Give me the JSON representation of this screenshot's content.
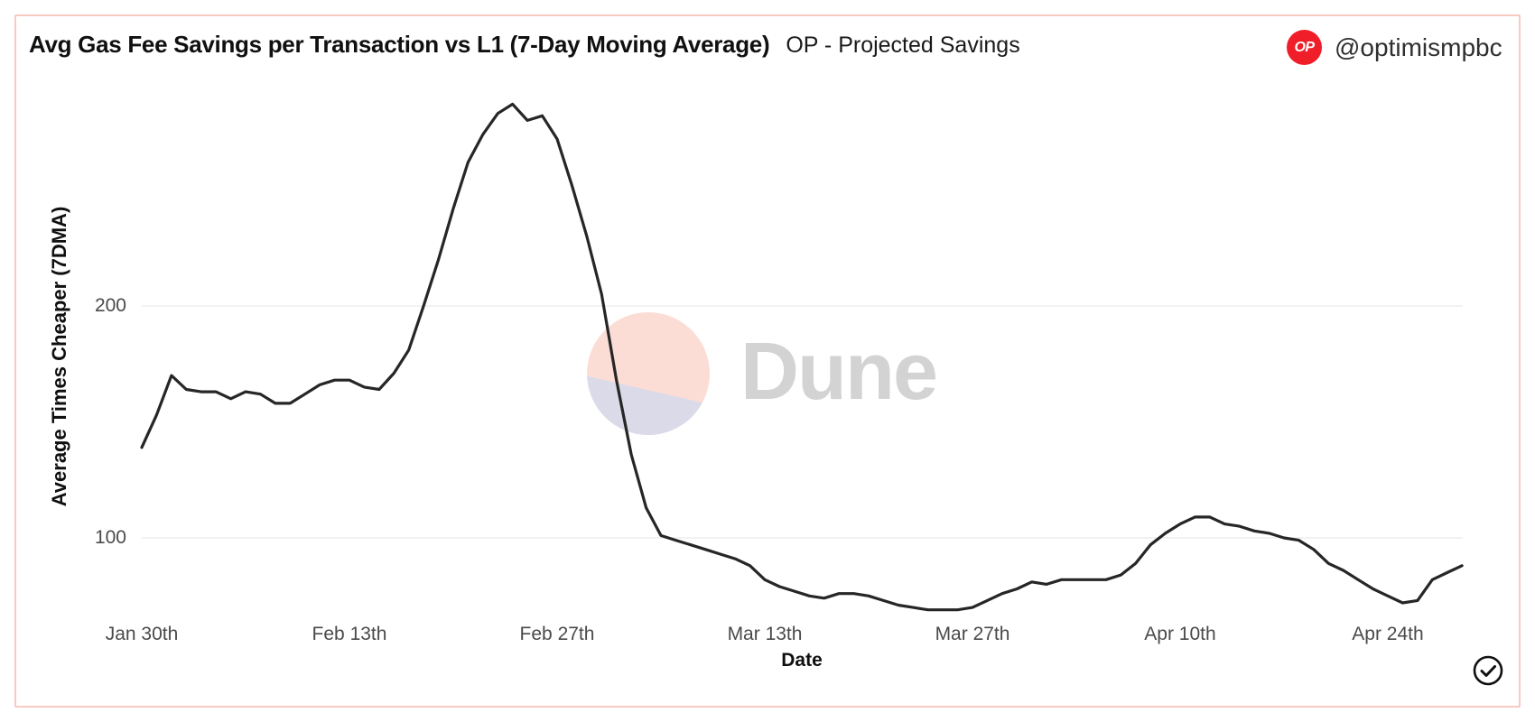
{
  "header": {
    "title": "Avg Gas Fee Savings per Transaction vs L1 (7-Day Moving Average)",
    "subtitle": "OP - Projected Savings",
    "badge_text": "OP",
    "handle": "@optimismpbc"
  },
  "watermark": {
    "text": "Dune"
  },
  "colors": {
    "border": "#f8cac1",
    "badge": "#f01e28",
    "line": "#262626",
    "gridline": "#ededed",
    "watermark_text": "#d3d3d3",
    "watermark_pink": "#fbddd6",
    "watermark_lavender": "#dadae8"
  },
  "chart_data": {
    "type": "line",
    "title": "Avg Gas Fee Savings per Transaction vs L1 (7-Day Moving Average)",
    "xlabel": "Date",
    "ylabel": "Average Times Cheaper (7DMA)",
    "x_unit": "daily points, day 0 = Jan 30th",
    "x_tick_days": [
      0,
      14,
      28,
      42,
      56,
      70,
      84
    ],
    "x_tick_labels": [
      "Jan 30th",
      "Feb 13th",
      "Feb 27th",
      "Mar 13th",
      "Mar 27th",
      "Apr 10th",
      "Apr 24th"
    ],
    "y_ticks": [
      200,
      100
    ],
    "ylim": [
      55,
      300
    ],
    "grid": "horizontal-only",
    "legend": "none",
    "series": [
      {
        "name": "OP - Projected Savings",
        "values": [
          139,
          153,
          170,
          164,
          163,
          163,
          160,
          163,
          162,
          158,
          158,
          162,
          166,
          168,
          168,
          165,
          164,
          171,
          181,
          200,
          220,
          242,
          262,
          274,
          283,
          287,
          280,
          282,
          272,
          252,
          230,
          205,
          168,
          136,
          113,
          101,
          99,
          97,
          95,
          93,
          91,
          88,
          82,
          79,
          77,
          75,
          74,
          76,
          76,
          75,
          73,
          71,
          70,
          69,
          69,
          69,
          70,
          73,
          76,
          78,
          81,
          80,
          82,
          82,
          82,
          82,
          84,
          89,
          97,
          102,
          106,
          109,
          109,
          106,
          105,
          103,
          102,
          100,
          99,
          95,
          89,
          86,
          82,
          78,
          75,
          72,
          73,
          82,
          85,
          88
        ]
      }
    ]
  }
}
